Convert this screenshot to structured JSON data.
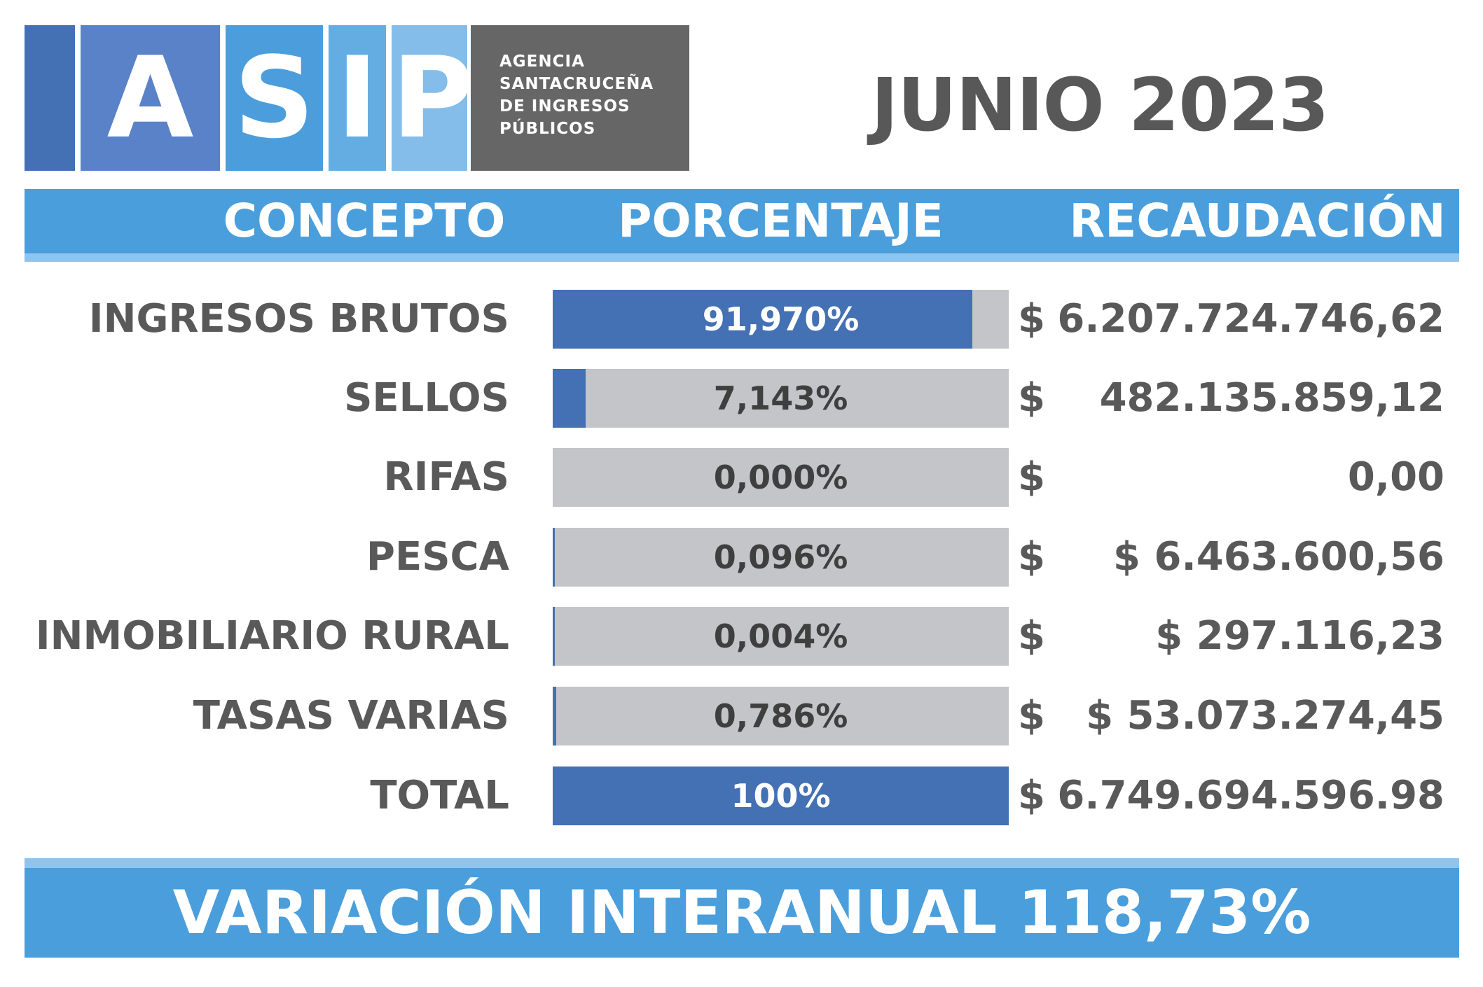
{
  "logo": {
    "letters": [
      "A",
      "S",
      "I",
      "P"
    ],
    "subtitle_lines": [
      "AGENCIA",
      "SANTACRUCEÑA",
      "DE INGRESOS",
      "PÚBLICOS"
    ],
    "colors": [
      "#4470b4",
      "#5a82c8",
      "#4b9edb",
      "#64ade2",
      "#84bde9"
    ]
  },
  "period": "JUNIO 2023",
  "header": {
    "concepto": "CONCEPTO",
    "porcentaje": "PORCENTAJE",
    "recaudacion": "RECAUDACIÓN"
  },
  "rows": [
    {
      "concepto": "INGRESOS BRUTOS",
      "porcentaje": "91,970%",
      "share": 0.9197,
      "currency": "$",
      "monto": "6.207.724.746,62"
    },
    {
      "concepto": "SELLOS",
      "porcentaje": "7,143%",
      "share": 0.07143,
      "currency": "$",
      "monto": "482.135.859,12"
    },
    {
      "concepto": "RIFAS",
      "porcentaje": "0,000%",
      "share": 0.0,
      "currency": "$",
      "monto": "0,00"
    },
    {
      "concepto": "PESCA",
      "porcentaje": "0,096%",
      "share": 0.00096,
      "currency": "$",
      "monto": "$ 6.463.600,56"
    },
    {
      "concepto": "INMOBILIARIO RURAL",
      "porcentaje": "0,004%",
      "share": 4e-05,
      "currency": "$",
      "monto": "$ 297.116,23"
    },
    {
      "concepto": "TASAS VARIAS",
      "porcentaje": "0,786%",
      "share": 0.00786,
      "currency": "$",
      "monto": "$ 53.073.274,45"
    },
    {
      "concepto": "TOTAL",
      "porcentaje": "100%",
      "share": 1.0,
      "currency": "$",
      "monto": "6.749.694.596.98"
    }
  ],
  "footer": "VARIACIÓN INTERANUAL 118,73%",
  "colors": {
    "accent_blue": "#4a9edb",
    "bar_fill": "#4470b4",
    "bar_track": "#c4c5c9",
    "text_gray": "#595959",
    "logo_gray": "#666666"
  }
}
